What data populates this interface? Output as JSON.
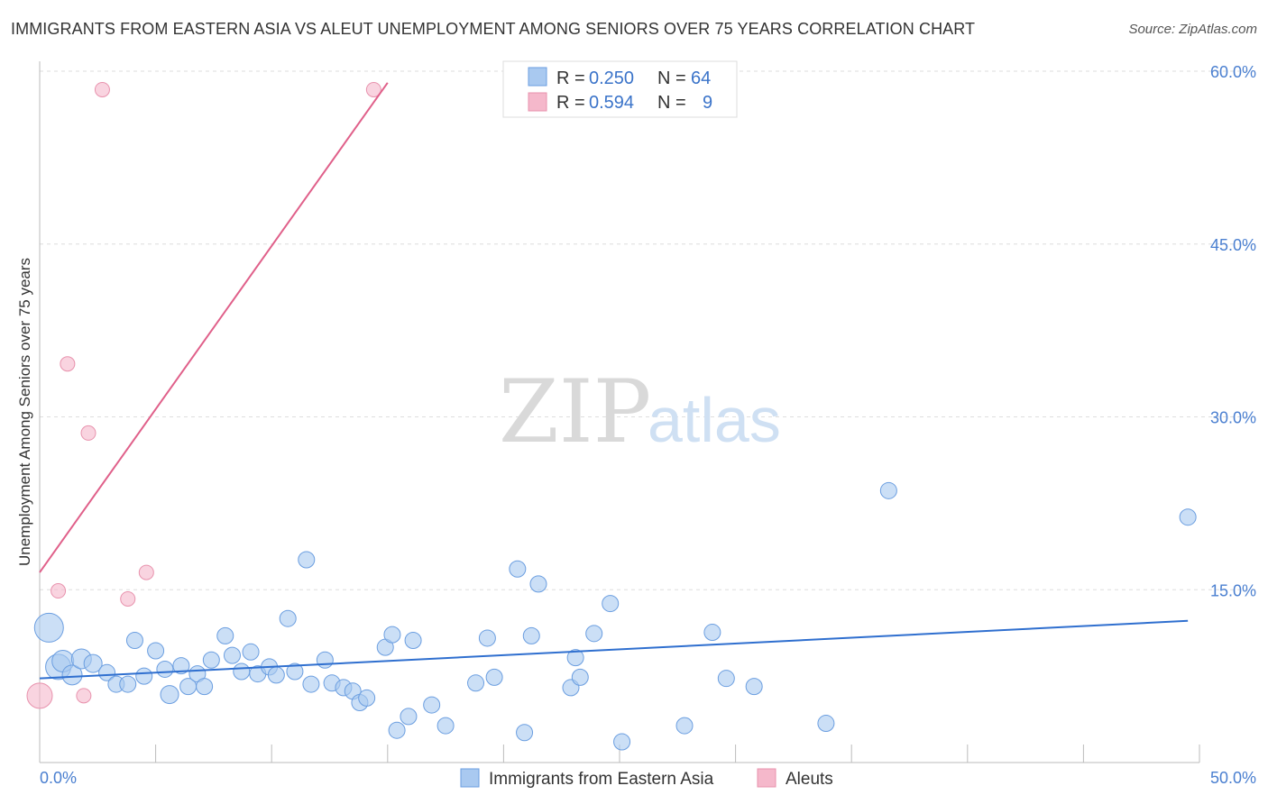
{
  "title": "IMMIGRANTS FROM EASTERN ASIA VS ALEUT UNEMPLOYMENT AMONG SENIORS OVER 75 YEARS CORRELATION CHART",
  "source": "Source: ZipAtlas.com",
  "watermark": {
    "part1": "ZIP",
    "part2": "atlas"
  },
  "legend_top": {
    "rows": [
      {
        "r_label": "R =",
        "r_value": "0.250",
        "n_label": "N =",
        "n_value": "64",
        "color": "#a9c9f0"
      },
      {
        "r_label": "R =",
        "r_value": "0.594",
        "n_label": "N =",
        "n_value": "9",
        "color": "#f5b8cb"
      }
    ]
  },
  "chart_data": {
    "type": "scatter",
    "title": "IMMIGRANTS FROM EASTERN ASIA VS ALEUT UNEMPLOYMENT AMONG SENIORS OVER 75 YEARS CORRELATION CHART",
    "xlabel": "",
    "ylabel": "Unemployment Among Seniors over 75 years",
    "xlim": [
      0,
      50
    ],
    "ylim": [
      0,
      60
    ],
    "x_tick_labels": [
      "0.0%",
      "50.0%"
    ],
    "y_ticks": [
      15,
      30,
      45,
      60
    ],
    "y_tick_labels": [
      "15.0%",
      "30.0%",
      "45.0%",
      "60.0%"
    ],
    "grid": true,
    "legend_position": "top-center",
    "series": [
      {
        "name": "Immigrants from Eastern Asia",
        "color": "#a9c9f0",
        "stroke": "#6b9ee0",
        "trend": {
          "x": [
            0,
            49.5
          ],
          "y": [
            7.3,
            12.3
          ],
          "color": "#2f6fcf"
        },
        "points": [
          [
            0.4,
            11.7,
            16
          ],
          [
            0.8,
            8.3,
            14
          ],
          [
            1.0,
            8.8,
            12
          ],
          [
            1.4,
            7.6,
            11
          ],
          [
            1.8,
            9.0,
            11
          ],
          [
            2.3,
            8.6,
            10
          ],
          [
            2.9,
            7.8,
            9
          ],
          [
            3.3,
            6.8,
            9
          ],
          [
            3.8,
            6.8,
            9
          ],
          [
            4.1,
            10.6,
            9
          ],
          [
            4.5,
            7.5,
            9
          ],
          [
            5.0,
            9.7,
            9
          ],
          [
            5.4,
            8.1,
            9
          ],
          [
            5.6,
            5.9,
            10
          ],
          [
            6.1,
            8.4,
            9
          ],
          [
            6.4,
            6.6,
            9
          ],
          [
            6.8,
            7.7,
            9
          ],
          [
            7.1,
            6.6,
            9
          ],
          [
            7.4,
            8.9,
            9
          ],
          [
            8.0,
            11.0,
            9
          ],
          [
            8.3,
            9.3,
            9
          ],
          [
            8.7,
            7.9,
            9
          ],
          [
            9.1,
            9.6,
            9
          ],
          [
            9.4,
            7.7,
            9
          ],
          [
            9.9,
            8.3,
            9
          ],
          [
            10.2,
            7.6,
            9
          ],
          [
            10.7,
            12.5,
            9
          ],
          [
            11.0,
            7.9,
            9
          ],
          [
            11.5,
            17.6,
            9
          ],
          [
            11.7,
            6.8,
            9
          ],
          [
            12.3,
            8.9,
            9
          ],
          [
            12.6,
            6.9,
            9
          ],
          [
            13.1,
            6.5,
            9
          ],
          [
            13.5,
            6.2,
            9
          ],
          [
            13.8,
            5.2,
            9
          ],
          [
            14.1,
            5.6,
            9
          ],
          [
            14.9,
            10.0,
            9
          ],
          [
            15.2,
            11.1,
            9
          ],
          [
            15.4,
            2.8,
            9
          ],
          [
            15.9,
            4.0,
            9
          ],
          [
            16.1,
            10.6,
            9
          ],
          [
            16.9,
            5.0,
            9
          ],
          [
            17.5,
            3.2,
            9
          ],
          [
            18.8,
            6.9,
            9
          ],
          [
            19.3,
            10.8,
            9
          ],
          [
            19.1,
            0.0,
            0
          ],
          [
            19.2,
            0.0,
            0
          ],
          [
            19.2,
            0.0,
            0
          ],
          [
            19.2,
            0.0,
            0
          ],
          [
            19.2,
            0.0,
            0
          ],
          [
            19.2,
            0.0,
            0
          ],
          [
            19.2,
            0.0,
            0
          ],
          [
            19.2,
            0.0,
            0
          ],
          [
            19.2,
            0.0,
            0
          ],
          [
            19.2,
            0.0,
            0
          ],
          [
            19.2,
            0.0,
            0
          ],
          [
            19.2,
            0.0,
            0
          ],
          [
            19.2,
            0.0,
            0
          ],
          [
            19.2,
            0.0,
            0
          ],
          [
            19.2,
            0.0,
            0
          ],
          [
            19.2,
            0.0,
            0
          ],
          [
            19.2,
            0.0,
            0
          ],
          [
            19.2,
            0.0,
            0
          ],
          [
            19.2,
            0.0,
            0
          ]
        ]
      },
      {
        "name": "Aleuts",
        "color": "#f5b8cb",
        "stroke": "#e892ad",
        "trend": {
          "x": [
            0,
            15.0
          ],
          "y": [
            16.5,
            59.0
          ],
          "color": "#e0608a"
        },
        "points": [
          [
            0.0,
            5.8,
            14
          ],
          [
            0.8,
            14.9,
            8
          ],
          [
            1.2,
            34.6,
            8
          ],
          [
            1.9,
            5.8,
            8
          ],
          [
            2.1,
            28.6,
            8
          ],
          [
            2.7,
            58.4,
            8
          ],
          [
            3.8,
            14.2,
            8
          ],
          [
            4.6,
            16.5,
            8
          ],
          [
            14.4,
            58.4,
            8
          ]
        ]
      }
    ],
    "extra_blue_points": [
      [
        19.6,
        7.4,
        9
      ],
      [
        20.6,
        16.8,
        9
      ],
      [
        20.9,
        2.6,
        9
      ],
      [
        21.2,
        11.0,
        9
      ],
      [
        21.5,
        15.5,
        9
      ],
      [
        22.9,
        6.5,
        9
      ],
      [
        23.1,
        9.1,
        9
      ],
      [
        23.3,
        7.4,
        9
      ],
      [
        23.9,
        11.2,
        9
      ],
      [
        24.6,
        13.8,
        9
      ],
      [
        25.1,
        1.8,
        9
      ],
      [
        27.8,
        3.2,
        9
      ],
      [
        29.0,
        11.3,
        9
      ],
      [
        29.6,
        7.3,
        9
      ],
      [
        30.8,
        6.6,
        9
      ],
      [
        33.9,
        3.4,
        9
      ],
      [
        36.6,
        23.6,
        9
      ],
      [
        49.5,
        21.3,
        9
      ]
    ]
  },
  "bottom_legend": [
    {
      "label": "Immigrants from Eastern Asia",
      "color": "#a9c9f0"
    },
    {
      "label": "Aleuts",
      "color": "#f5b8cb"
    }
  ]
}
